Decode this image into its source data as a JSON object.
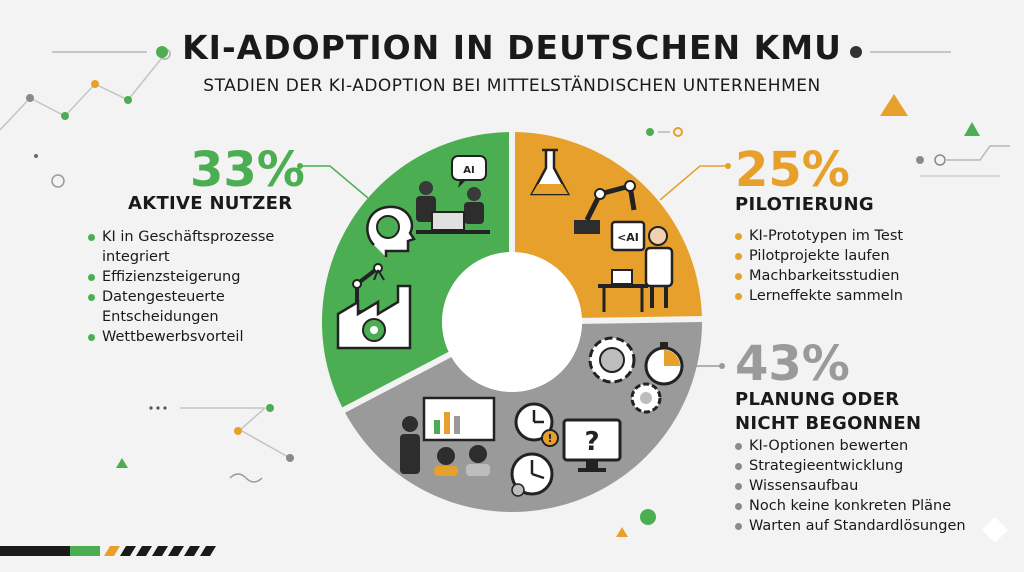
{
  "title": "KI-ADOPTION IN DEUTSCHEN KMU",
  "subtitle": "STADIEN DER KI-ADOPTION BEI MITTELSTÄNDISCHEN UNTERNEHMEN",
  "colors": {
    "green": "#4cae52",
    "orange": "#e8a02c",
    "gray": "#9a9a9a",
    "dark": "#1a1a1a"
  },
  "chart_data": {
    "type": "pie",
    "title": "KI-ADOPTION IN DEUTSCHEN KMU",
    "subtitle": "STADIEN DER KI-ADOPTION BEI MITTELSTÄNDISCHEN UNTERNEHMEN",
    "donut": true,
    "slices": [
      {
        "label": "AKTIVE NUTZER",
        "value": 33,
        "value_label": "33%",
        "color": "#4cae52",
        "bullets": [
          "KI in Geschäftsprozesse integriert",
          "Effizienzsteigerung",
          "Datengesteuerte Entscheidungen",
          "Wettbewerbsvorteil"
        ]
      },
      {
        "label": "PILOTIERUNG",
        "value": 25,
        "value_label": "25%",
        "color": "#e8a02c",
        "bullets": [
          "KI-Prototypen im Test",
          "Pilotprojekte laufen",
          "Machbarkeitsstudien",
          "Lerneffekte sammeln"
        ]
      },
      {
        "label": "PLANUNG ODER NICHT BEGONNEN",
        "value": 43,
        "value_label": "43%",
        "color": "#9a9a9a",
        "bullets": [
          "KI-Optionen bewerten",
          "Strategieentwicklung",
          "Wissensaufbau",
          "Noch keine konkreten Pläne",
          "Warten auf Standardlösungen"
        ]
      }
    ]
  },
  "icons": {
    "green": [
      "ai-chat-icon",
      "business-people-icon",
      "brain-head-icon",
      "robot-arm-icon",
      "factory-gear-icon"
    ],
    "orange": [
      "flask-icon",
      "robot-arm-icon",
      "ai-screen-icon",
      "scientist-icon",
      "lab-table-icon"
    ],
    "gray": [
      "gear-brain-icon",
      "stopwatch-icon",
      "presentation-icon",
      "clock-warning-icon",
      "question-monitor-icon",
      "clock-icon"
    ]
  },
  "center_icon_label": "AI"
}
